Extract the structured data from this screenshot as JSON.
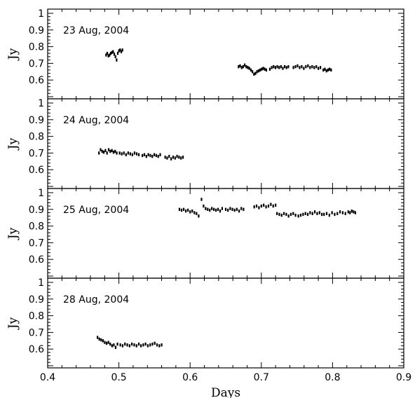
{
  "chart_data": [
    {
      "type": "scatter",
      "title": "23 Aug, 2004",
      "xlabel": "",
      "ylabel": "Jy",
      "xlim": [
        0.4,
        0.9
      ],
      "ylim": [
        0.5,
        1.0
      ],
      "yticks": [
        "1",
        "0.9",
        "0.8",
        "0.7",
        "0.6"
      ],
      "segments": [
        {
          "x0": 0.482,
          "x1": 0.505,
          "y": [
            0.75,
            0.76,
            0.745,
            0.75,
            0.76,
            0.765,
            0.77,
            0.755,
            0.74,
            0.72,
            0.76,
            0.775,
            0.78,
            0.77,
            0.78
          ]
        },
        {
          "x0": 0.668,
          "x1": 0.707,
          "y": [
            0.68,
            0.685,
            0.675,
            0.68,
            0.69,
            0.68,
            0.675,
            0.67,
            0.66,
            0.65,
            0.635,
            0.64,
            0.65,
            0.655,
            0.66,
            0.665,
            0.67,
            0.665,
            0.66
          ]
        },
        {
          "x0": 0.712,
          "x1": 0.738,
          "y": [
            0.665,
            0.675,
            0.68,
            0.675,
            0.68,
            0.675,
            0.68,
            0.67,
            0.68,
            0.675,
            0.68
          ]
        },
        {
          "x0": 0.745,
          "x1": 0.783,
          "y": [
            0.675,
            0.68,
            0.685,
            0.675,
            0.68,
            0.67,
            0.68,
            0.685,
            0.675,
            0.68,
            0.675,
            0.68,
            0.67,
            0.675
          ]
        },
        {
          "x0": 0.787,
          "x1": 0.798,
          "y": [
            0.66,
            0.665,
            0.655,
            0.66,
            0.665,
            0.66
          ]
        }
      ]
    },
    {
      "type": "scatter",
      "title": "24 Aug, 2004",
      "xlabel": "",
      "ylabel": "Jy",
      "xlim": [
        0.4,
        0.9
      ],
      "ylim": [
        0.5,
        1.0
      ],
      "yticks": [
        "1",
        "0.9",
        "0.8",
        "0.7",
        "0.6"
      ],
      "segments": [
        {
          "x0": 0.472,
          "x1": 0.497,
          "y": [
            0.7,
            0.72,
            0.71,
            0.705,
            0.715,
            0.7,
            0.72,
            0.71,
            0.715,
            0.705,
            0.71,
            0.7
          ]
        },
        {
          "x0": 0.501,
          "x1": 0.528,
          "y": [
            0.7,
            0.695,
            0.7,
            0.69,
            0.7,
            0.695,
            0.69,
            0.7,
            0.695,
            0.69
          ]
        },
        {
          "x0": 0.533,
          "x1": 0.558,
          "y": [
            0.685,
            0.69,
            0.68,
            0.69,
            0.685,
            0.68,
            0.69,
            0.685,
            0.68,
            0.69
          ]
        },
        {
          "x0": 0.565,
          "x1": 0.59,
          "y": [
            0.675,
            0.67,
            0.68,
            0.665,
            0.675,
            0.67,
            0.68,
            0.675,
            0.67,
            0.675
          ]
        }
      ]
    },
    {
      "type": "scatter",
      "title": "25 Aug, 2004",
      "xlabel": "",
      "ylabel": "Jy",
      "xlim": [
        0.4,
        0.9
      ],
      "ylim": [
        0.5,
        1.0
      ],
      "yticks": [
        "1",
        "0.9",
        "0.8",
        "0.7",
        "0.6"
      ],
      "segments": [
        {
          "x0": 0.585,
          "x1": 0.612,
          "y": [
            0.9,
            0.895,
            0.9,
            0.89,
            0.895,
            0.885,
            0.89,
            0.88,
            0.875,
            0.86
          ]
        },
        {
          "x0": 0.616,
          "x1": 0.645,
          "y": [
            0.96,
            0.92,
            0.905,
            0.9,
            0.895,
            0.905,
            0.9,
            0.895,
            0.9,
            0.89,
            0.905
          ]
        },
        {
          "x0": 0.65,
          "x1": 0.675,
          "y": [
            0.9,
            0.895,
            0.905,
            0.9,
            0.895,
            0.9,
            0.89,
            0.905,
            0.9
          ]
        },
        {
          "x0": 0.69,
          "x1": 0.72,
          "y": [
            0.915,
            0.92,
            0.91,
            0.92,
            0.925,
            0.915,
            0.92,
            0.93,
            0.92,
            0.925
          ]
        },
        {
          "x0": 0.722,
          "x1": 0.748,
          "y": [
            0.875,
            0.87,
            0.865,
            0.875,
            0.87,
            0.86,
            0.87,
            0.875,
            0.865
          ]
        },
        {
          "x0": 0.752,
          "x1": 0.785,
          "y": [
            0.86,
            0.865,
            0.87,
            0.875,
            0.87,
            0.88,
            0.875,
            0.885,
            0.875,
            0.88,
            0.87
          ]
        },
        {
          "x0": 0.788,
          "x1": 0.818,
          "y": [
            0.87,
            0.875,
            0.865,
            0.88,
            0.87,
            0.875,
            0.885,
            0.88,
            0.875
          ]
        },
        {
          "x0": 0.822,
          "x1": 0.832,
          "y": [
            0.885,
            0.88,
            0.89,
            0.885,
            0.88
          ]
        }
      ]
    },
    {
      "type": "scatter",
      "title": "28 Aug, 2004",
      "xlabel": "Days",
      "ylabel": "Jy",
      "xlim": [
        0.4,
        0.9
      ],
      "ylim": [
        0.5,
        1.0
      ],
      "xticks": [
        "0.4",
        "0.5",
        "0.6",
        "0.7",
        "0.8",
        "0.9"
      ],
      "yticks": [
        "1",
        "0.9",
        "0.8",
        "0.7",
        "0.6"
      ],
      "segments": [
        {
          "x0": 0.47,
          "x1": 0.498,
          "y": [
            0.67,
            0.66,
            0.655,
            0.65,
            0.64,
            0.635,
            0.64,
            0.63,
            0.62,
            0.625,
            0.61,
            0.63
          ]
        },
        {
          "x0": 0.502,
          "x1": 0.528,
          "y": [
            0.625,
            0.62,
            0.63,
            0.625,
            0.62,
            0.63,
            0.625,
            0.62,
            0.63
          ]
        },
        {
          "x0": 0.531,
          "x1": 0.56,
          "y": [
            0.62,
            0.625,
            0.63,
            0.62,
            0.625,
            0.63,
            0.635,
            0.625,
            0.62,
            0.625
          ]
        }
      ]
    }
  ]
}
